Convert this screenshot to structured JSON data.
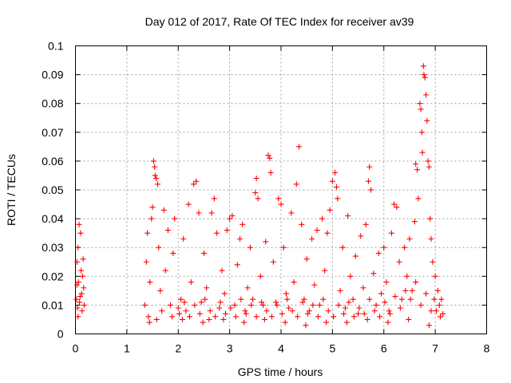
{
  "chart_data": {
    "type": "scatter",
    "title": "Day 012 of 2017, Rate Of TEC Index for receiver av39",
    "xlabel": "GPS time / hours",
    "ylabel": "ROTI / TECUs",
    "xlim": [
      0,
      8
    ],
    "ylim": [
      0,
      0.1
    ],
    "xticks": [
      "0",
      "1",
      "2",
      "3",
      "4",
      "5",
      "6",
      "7",
      "8"
    ],
    "yticks": [
      "0",
      "0.01",
      "0.02",
      "0.03",
      "0.04",
      "0.05",
      "0.06",
      "0.07",
      "0.08",
      "0.09",
      "0.1"
    ],
    "grid": true,
    "marker": "+",
    "color": "#ff0000",
    "series": [
      {
        "name": "ROTI",
        "points": [
          [
            0.02,
            0.012
          ],
          [
            0.03,
            0.025
          ],
          [
            0.04,
            0.009
          ],
          [
            0.05,
            0.03
          ],
          [
            0.06,
            0.018
          ],
          [
            0.07,
            0.038
          ],
          [
            0.08,
            0.011
          ],
          [
            0.1,
            0.035
          ],
          [
            0.11,
            0.022
          ],
          [
            0.12,
            0.014
          ],
          [
            0.13,
            0.008
          ],
          [
            0.14,
            0.02
          ],
          [
            0.15,
            0.026
          ],
          [
            0.16,
            0.016
          ],
          [
            0.17,
            0.01
          ],
          [
            0.05,
            0.006
          ],
          [
            0.09,
            0.013
          ],
          [
            0.03,
            0.017
          ],
          [
            1.35,
            0.01
          ],
          [
            1.38,
            0.025
          ],
          [
            1.4,
            0.035
          ],
          [
            1.42,
            0.006
          ],
          [
            1.45,
            0.018
          ],
          [
            1.48,
            0.04
          ],
          [
            1.5,
            0.044
          ],
          [
            1.52,
            0.06
          ],
          [
            1.54,
            0.058
          ],
          [
            1.55,
            0.055
          ],
          [
            1.57,
            0.054
          ],
          [
            1.6,
            0.052
          ],
          [
            1.62,
            0.03
          ],
          [
            1.65,
            0.015
          ],
          [
            1.68,
            0.008
          ],
          [
            1.72,
            0.043
          ],
          [
            1.75,
            0.022
          ],
          [
            1.8,
            0.036
          ],
          [
            1.85,
            0.01
          ],
          [
            1.9,
            0.028
          ],
          [
            1.93,
            0.04
          ],
          [
            2.0,
            0.009
          ],
          [
            2.05,
            0.012
          ],
          [
            2.1,
            0.033
          ],
          [
            2.15,
            0.008
          ],
          [
            2.2,
            0.045
          ],
          [
            2.25,
            0.018
          ],
          [
            2.3,
            0.052
          ],
          [
            2.35,
            0.053
          ],
          [
            2.4,
            0.042
          ],
          [
            2.45,
            0.011
          ],
          [
            2.5,
            0.028
          ],
          [
            2.55,
            0.016
          ],
          [
            2.6,
            0.005
          ],
          [
            2.65,
            0.042
          ],
          [
            2.7,
            0.047
          ],
          [
            2.75,
            0.035
          ],
          [
            2.8,
            0.009
          ],
          [
            2.85,
            0.022
          ],
          [
            2.9,
            0.014
          ],
          [
            2.95,
            0.036
          ],
          [
            3.0,
            0.04
          ],
          [
            3.05,
            0.041
          ],
          [
            3.1,
            0.01
          ],
          [
            3.15,
            0.024
          ],
          [
            3.2,
            0.033
          ],
          [
            3.25,
            0.038
          ],
          [
            3.3,
            0.008
          ],
          [
            3.35,
            0.016
          ],
          [
            3.4,
            0.03
          ],
          [
            3.45,
            0.012
          ],
          [
            3.5,
            0.049
          ],
          [
            3.52,
            0.054
          ],
          [
            3.55,
            0.047
          ],
          [
            3.6,
            0.02
          ],
          [
            3.65,
            0.01
          ],
          [
            3.7,
            0.032
          ],
          [
            3.75,
            0.062
          ],
          [
            3.78,
            0.061
          ],
          [
            3.8,
            0.056
          ],
          [
            3.85,
            0.025
          ],
          [
            3.9,
            0.011
          ],
          [
            3.95,
            0.047
          ],
          [
            4.0,
            0.045
          ],
          [
            4.05,
            0.03
          ],
          [
            4.1,
            0.014
          ],
          [
            4.15,
            0.009
          ],
          [
            4.2,
            0.042
          ],
          [
            4.25,
            0.018
          ],
          [
            4.3,
            0.052
          ],
          [
            4.35,
            0.065
          ],
          [
            4.4,
            0.038
          ],
          [
            4.45,
            0.012
          ],
          [
            4.5,
            0.026
          ],
          [
            4.55,
            0.008
          ],
          [
            4.6,
            0.033
          ],
          [
            4.65,
            0.017
          ],
          [
            4.7,
            0.036
          ],
          [
            4.75,
            0.01
          ],
          [
            4.8,
            0.04
          ],
          [
            4.85,
            0.022
          ],
          [
            4.9,
            0.035
          ],
          [
            4.95,
            0.043
          ],
          [
            5.0,
            0.053
          ],
          [
            5.05,
            0.056
          ],
          [
            5.08,
            0.051
          ],
          [
            5.1,
            0.047
          ],
          [
            5.15,
            0.015
          ],
          [
            5.2,
            0.03
          ],
          [
            5.25,
            0.009
          ],
          [
            5.3,
            0.041
          ],
          [
            5.35,
            0.02
          ],
          [
            5.4,
            0.012
          ],
          [
            5.45,
            0.027
          ],
          [
            5.5,
            0.007
          ],
          [
            5.55,
            0.034
          ],
          [
            5.6,
            0.016
          ],
          [
            5.65,
            0.038
          ],
          [
            5.7,
            0.053
          ],
          [
            5.72,
            0.058
          ],
          [
            5.75,
            0.05
          ],
          [
            5.8,
            0.021
          ],
          [
            5.85,
            0.01
          ],
          [
            5.9,
            0.028
          ],
          [
            5.95,
            0.014
          ],
          [
            6.0,
            0.03
          ],
          [
            6.05,
            0.018
          ],
          [
            6.1,
            0.008
          ],
          [
            6.15,
            0.035
          ],
          [
            6.2,
            0.045
          ],
          [
            6.25,
            0.044
          ],
          [
            6.3,
            0.025
          ],
          [
            6.35,
            0.012
          ],
          [
            6.4,
            0.03
          ],
          [
            6.45,
            0.02
          ],
          [
            6.5,
            0.033
          ],
          [
            6.55,
            0.015
          ],
          [
            6.6,
            0.039
          ],
          [
            6.62,
            0.059
          ],
          [
            6.65,
            0.057
          ],
          [
            6.67,
            0.047
          ],
          [
            6.7,
            0.08
          ],
          [
            6.72,
            0.078
          ],
          [
            6.74,
            0.07
          ],
          [
            6.75,
            0.063
          ],
          [
            6.77,
            0.093
          ],
          [
            6.78,
            0.09
          ],
          [
            6.8,
            0.089
          ],
          [
            6.82,
            0.083
          ],
          [
            6.84,
            0.074
          ],
          [
            6.86,
            0.06
          ],
          [
            6.88,
            0.058
          ],
          [
            6.9,
            0.04
          ],
          [
            6.92,
            0.033
          ],
          [
            6.95,
            0.025
          ],
          [
            6.98,
            0.012
          ],
          [
            7.0,
            0.02
          ],
          [
            7.02,
            0.008
          ],
          [
            7.05,
            0.015
          ],
          [
            7.08,
            0.01
          ],
          [
            7.1,
            0.006
          ],
          [
            7.12,
            0.012
          ],
          [
            7.15,
            0.007
          ],
          [
            2.02,
            0.007
          ],
          [
            2.12,
            0.011
          ],
          [
            2.22,
            0.006
          ],
          [
            2.32,
            0.01
          ],
          [
            2.42,
            0.007
          ],
          [
            2.52,
            0.012
          ],
          [
            2.62,
            0.008
          ],
          [
            2.72,
            0.006
          ],
          [
            2.82,
            0.011
          ],
          [
            2.92,
            0.007
          ],
          [
            3.02,
            0.009
          ],
          [
            3.12,
            0.006
          ],
          [
            3.22,
            0.012
          ],
          [
            3.32,
            0.007
          ],
          [
            3.42,
            0.01
          ],
          [
            3.52,
            0.006
          ],
          [
            3.62,
            0.011
          ],
          [
            3.72,
            0.008
          ],
          [
            3.82,
            0.006
          ],
          [
            3.92,
            0.01
          ],
          [
            4.02,
            0.007
          ],
          [
            4.12,
            0.012
          ],
          [
            4.22,
            0.008
          ],
          [
            4.32,
            0.006
          ],
          [
            4.42,
            0.011
          ],
          [
            4.52,
            0.007
          ],
          [
            4.62,
            0.01
          ],
          [
            4.72,
            0.006
          ],
          [
            4.82,
            0.012
          ],
          [
            4.92,
            0.008
          ],
          [
            5.02,
            0.006
          ],
          [
            5.12,
            0.01
          ],
          [
            5.22,
            0.007
          ],
          [
            5.32,
            0.011
          ],
          [
            5.42,
            0.006
          ],
          [
            5.52,
            0.009
          ],
          [
            5.62,
            0.007
          ],
          [
            5.72,
            0.012
          ],
          [
            5.82,
            0.008
          ],
          [
            5.92,
            0.006
          ],
          [
            6.02,
            0.011
          ],
          [
            6.12,
            0.007
          ],
          [
            6.22,
            0.013
          ],
          [
            6.32,
            0.009
          ],
          [
            6.42,
            0.015
          ],
          [
            6.52,
            0.012
          ],
          [
            6.62,
            0.018
          ],
          [
            6.72,
            0.01
          ],
          [
            6.82,
            0.014
          ],
          [
            6.92,
            0.008
          ],
          [
            1.44,
            0.004
          ],
          [
            1.58,
            0.005
          ],
          [
            1.88,
            0.006
          ],
          [
            2.08,
            0.005
          ],
          [
            2.48,
            0.004
          ],
          [
            2.88,
            0.005
          ],
          [
            3.28,
            0.004
          ],
          [
            3.68,
            0.005
          ],
          [
            4.08,
            0.004
          ],
          [
            4.48,
            0.003
          ],
          [
            4.88,
            0.004
          ],
          [
            5.28,
            0.004
          ],
          [
            5.68,
            0.005
          ],
          [
            6.08,
            0.004
          ],
          [
            6.48,
            0.005
          ],
          [
            6.88,
            0.003
          ]
        ]
      }
    ]
  }
}
